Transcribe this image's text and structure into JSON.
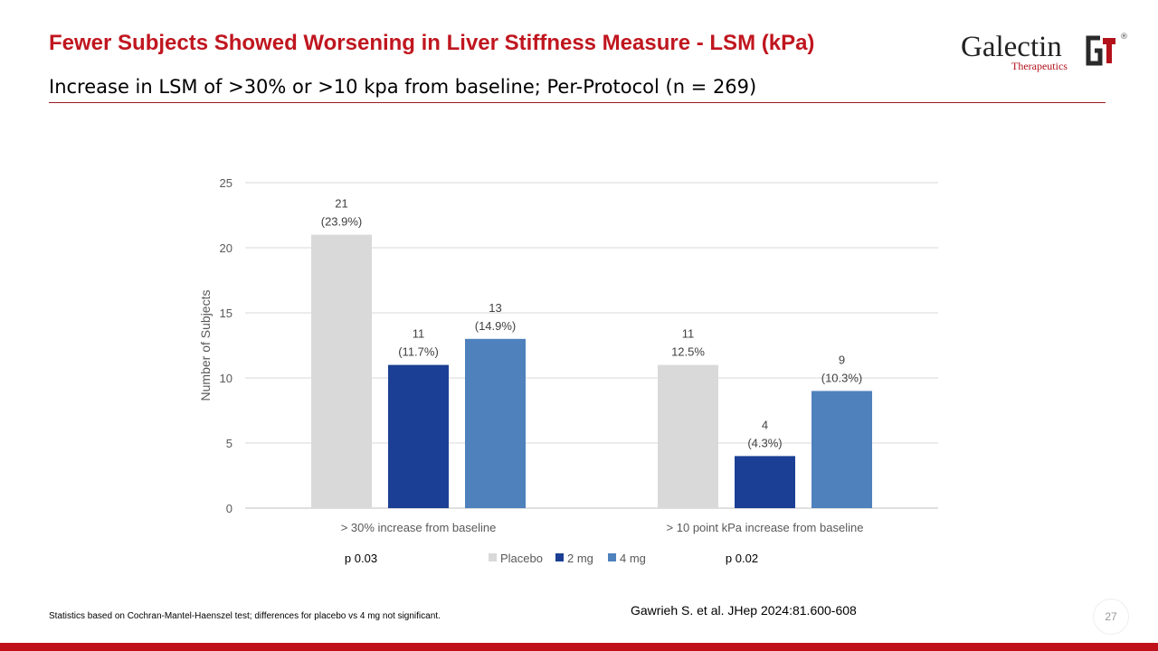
{
  "header": {
    "title": "Fewer Subjects Showed Worsening in Liver Stiffness Measure - LSM (kPa)",
    "subtitle": "Increase in LSM of >30% or >10 kpa from baseline; Per-Protocol  (n = 269)"
  },
  "logo": {
    "word": "Galectin",
    "sub": "Therapeutics",
    "mark": "GT",
    "reg": "®"
  },
  "chart_data": {
    "type": "bar",
    "ylabel": "Number of Subjects",
    "xlabel": "",
    "ylim": [
      0,
      25
    ],
    "yticks": [
      0,
      5,
      10,
      15,
      20,
      25
    ],
    "grid": true,
    "legend_position": "bottom-center",
    "categories": [
      "> 30% increase from baseline",
      "> 10 point kPa increase from baseline"
    ],
    "series": [
      {
        "name": "Placebo",
        "color": "#d9d9d9",
        "values": [
          21,
          11
        ],
        "label_top": [
          "21",
          "11"
        ],
        "label_bottom": [
          "(23.9%)",
          "12.5%"
        ]
      },
      {
        "name": "2 mg",
        "color": "#1b3f94",
        "values": [
          11,
          4
        ],
        "label_top": [
          "11",
          "4"
        ],
        "label_bottom": [
          "(11.7%)",
          "(4.3%)"
        ]
      },
      {
        "name": "4 mg",
        "color": "#4f81bd",
        "values": [
          13,
          9
        ],
        "label_top": [
          "13",
          "9"
        ],
        "label_bottom": [
          "(14.9%)",
          "(10.3%)"
        ]
      }
    ],
    "annotations": [
      "p 0.03",
      "p 0.02"
    ]
  },
  "footer": {
    "note": "Statistics  based on Cochran-Mantel-Haenszel test; differences for placebo vs 4 mg not significant.",
    "citation": "Gawrieh S. et al. JHep 2024:81.600-608",
    "page_number": "27"
  },
  "colors": {
    "title": "#c0161f",
    "accent_bar": "#c0101a"
  }
}
